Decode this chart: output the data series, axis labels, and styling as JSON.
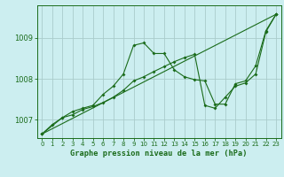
{
  "title": "Graphe pression niveau de la mer (hPa)",
  "bg_color": "#cceef0",
  "line_color": "#1a6b1a",
  "grid_color": "#aacccc",
  "tick_color": "#1a6b1a",
  "xlim": [
    -0.5,
    23.5
  ],
  "ylim": [
    1006.55,
    1009.8
  ],
  "yticks": [
    1007,
    1008,
    1009
  ],
  "xticks": [
    0,
    1,
    2,
    3,
    4,
    5,
    6,
    7,
    8,
    9,
    10,
    11,
    12,
    13,
    14,
    15,
    16,
    17,
    18,
    19,
    20,
    21,
    22,
    23
  ],
  "series1_x": [
    0,
    1,
    2,
    3,
    4,
    5,
    6,
    7,
    8,
    9,
    10,
    11,
    12,
    13,
    14,
    15,
    16,
    17,
    18,
    19,
    20,
    21,
    22,
    23
  ],
  "series1_y": [
    1006.65,
    1006.88,
    1007.05,
    1007.12,
    1007.25,
    1007.32,
    1007.42,
    1007.55,
    1007.72,
    1007.95,
    1008.05,
    1008.18,
    1008.3,
    1008.42,
    1008.52,
    1008.6,
    1007.35,
    1007.28,
    1007.55,
    1007.82,
    1007.9,
    1008.12,
    1009.15,
    1009.58
  ],
  "series2_x": [
    0,
    2,
    3,
    4,
    5,
    6,
    7,
    8,
    9,
    10,
    11,
    12,
    13,
    14,
    15,
    16,
    17,
    18,
    19,
    20,
    21,
    22,
    23
  ],
  "series2_y": [
    1006.65,
    1007.05,
    1007.2,
    1007.28,
    1007.35,
    1007.62,
    1007.82,
    1008.12,
    1008.82,
    1008.88,
    1008.62,
    1008.62,
    1008.22,
    1008.05,
    1007.98,
    1007.95,
    1007.38,
    1007.38,
    1007.88,
    1007.95,
    1008.32,
    1009.18,
    1009.58
  ],
  "series3_x": [
    0,
    23
  ],
  "series3_y": [
    1006.65,
    1009.58
  ]
}
